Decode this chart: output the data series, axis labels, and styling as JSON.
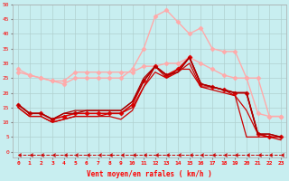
{
  "xlabel": "Vent moyen/en rafales ( km/h )",
  "x_ticks": [
    0,
    1,
    2,
    3,
    4,
    5,
    6,
    7,
    8,
    9,
    10,
    11,
    12,
    13,
    14,
    15,
    16,
    17,
    18,
    19,
    20,
    21,
    22,
    23
  ],
  "ylim": [
    -2,
    50
  ],
  "xlim": [
    -0.5,
    23.5
  ],
  "yticks": [
    0,
    5,
    10,
    15,
    20,
    25,
    30,
    35,
    40,
    45,
    50
  ],
  "background_color": "#c8eef0",
  "grid_color": "#b0d0d0",
  "lines": [
    {
      "y": [
        27,
        26,
        25,
        24,
        23,
        25,
        25,
        25,
        25,
        25,
        28,
        35,
        46,
        48,
        44,
        40,
        42,
        35,
        34,
        34,
        25,
        13,
        12,
        12
      ],
      "color": "#ffaaaa",
      "marker": "D",
      "ms": 2.5,
      "lw": 1.0
    },
    {
      "y": [
        28,
        26,
        25,
        24,
        24,
        27,
        27,
        27,
        27,
        27,
        27,
        29,
        29,
        30,
        30,
        32,
        30,
        28,
        26,
        25,
        25,
        25,
        12,
        12
      ],
      "color": "#ffaaaa",
      "marker": "D",
      "ms": 2.5,
      "lw": 1.0
    },
    {
      "y": [
        16,
        13,
        13,
        11,
        12,
        13,
        13,
        13,
        13,
        13,
        16,
        24,
        29,
        26,
        28,
        32,
        23,
        22,
        21,
        20,
        20,
        6,
        5,
        5
      ],
      "color": "#dd0000",
      "marker": "D",
      "ms": 2.5,
      "lw": 1.2
    },
    {
      "y": [
        15,
        12,
        12,
        10,
        11,
        12,
        12,
        12,
        12,
        11,
        14,
        22,
        27,
        25,
        27,
        30,
        22,
        21,
        20,
        19,
        5,
        5,
        5,
        4
      ],
      "color": "#cc0000",
      "marker": null,
      "ms": 0,
      "lw": 0.9
    },
    {
      "y": [
        15,
        12,
        12,
        10,
        11,
        12,
        12,
        12,
        13,
        13,
        15,
        22,
        29,
        25,
        28,
        28,
        22,
        22,
        21,
        19,
        14,
        6,
        5,
        5
      ],
      "color": "#cc0000",
      "marker": null,
      "ms": 0,
      "lw": 0.9
    },
    {
      "y": [
        16,
        13,
        13,
        11,
        13,
        13,
        14,
        14,
        14,
        14,
        17,
        24,
        29,
        26,
        27,
        32,
        23,
        22,
        21,
        20,
        20,
        6,
        6,
        5
      ],
      "color": "#aa0000",
      "marker": null,
      "ms": 0,
      "lw": 0.9
    },
    {
      "y": [
        16,
        13,
        13,
        11,
        13,
        14,
        14,
        14,
        14,
        14,
        17,
        25,
        29,
        26,
        27,
        32,
        23,
        22,
        21,
        20,
        20,
        6,
        6,
        5
      ],
      "color": "#aa0000",
      "marker": null,
      "ms": 0,
      "lw": 0.9
    },
    {
      "y": [
        -1,
        -1,
        -1,
        -1,
        -1,
        -1,
        -1,
        -1,
        -1,
        -1,
        -1,
        -1,
        -1,
        -1,
        -1,
        -1,
        -1,
        -1,
        -1,
        -1,
        -1,
        -1,
        -1,
        -1
      ],
      "color": "#cc0000",
      "marker": 4,
      "ms": 3,
      "lw": 0.7,
      "linestyle": "dashed"
    }
  ]
}
